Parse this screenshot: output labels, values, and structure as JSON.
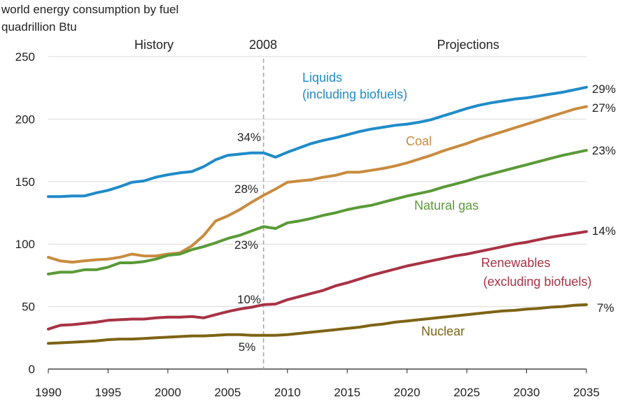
{
  "title_line1": "world energy consumption by fuel",
  "title_line2": "quadrillion Btu",
  "regions": {
    "history": "History",
    "split_year": "2008",
    "projections": "Projections"
  },
  "chart_data": {
    "type": "line",
    "title": "world energy consumption by fuel",
    "ylabel": "quadrillion Btu",
    "xlim": [
      1990,
      2035
    ],
    "ylim": [
      0,
      250
    ],
    "x_ticks": [
      1990,
      1995,
      2000,
      2005,
      2010,
      2015,
      2020,
      2025,
      2030,
      2035
    ],
    "y_ticks": [
      0,
      50,
      100,
      150,
      200,
      250
    ],
    "grid": "horizontal",
    "split_line_x": 2008,
    "series": [
      {
        "key": "liquids",
        "name_line1": "Liquids",
        "name_line2": "(including biofuels)",
        "color": "#1f8bc9",
        "end_share": "29%",
        "share_2008": "34%",
        "points": [
          [
            1990,
            138
          ],
          [
            1991,
            138
          ],
          [
            1992,
            138.5
          ],
          [
            1993,
            138.5
          ],
          [
            1994,
            141
          ],
          [
            1995,
            143
          ],
          [
            1996,
            146
          ],
          [
            1997,
            149.5
          ],
          [
            1998,
            150.5
          ],
          [
            1999,
            153.5
          ],
          [
            2000,
            155.5
          ],
          [
            2001,
            157
          ],
          [
            2002,
            158
          ],
          [
            2003,
            162
          ],
          [
            2004,
            167.5
          ],
          [
            2005,
            171
          ],
          [
            2006,
            172
          ],
          [
            2007,
            173
          ],
          [
            2008,
            173
          ],
          [
            2009,
            169.5
          ],
          [
            2010,
            173.5
          ],
          [
            2011,
            177
          ],
          [
            2012,
            180.5
          ],
          [
            2013,
            183
          ],
          [
            2014,
            185
          ],
          [
            2015,
            187.5
          ],
          [
            2016,
            190
          ],
          [
            2017,
            192
          ],
          [
            2018,
            193.5
          ],
          [
            2019,
            195
          ],
          [
            2020,
            196
          ],
          [
            2021,
            197.5
          ],
          [
            2022,
            199.5
          ],
          [
            2023,
            202.5
          ],
          [
            2024,
            205.5
          ],
          [
            2025,
            208.5
          ],
          [
            2026,
            211
          ],
          [
            2027,
            213
          ],
          [
            2028,
            214.5
          ],
          [
            2029,
            216
          ],
          [
            2030,
            217
          ],
          [
            2031,
            218.5
          ],
          [
            2032,
            220
          ],
          [
            2033,
            221.5
          ],
          [
            2034,
            223.5
          ],
          [
            2035,
            225.5
          ]
        ]
      },
      {
        "key": "coal",
        "name_line1": "Coal",
        "name_line2": "",
        "color": "#c98b3e",
        "end_share": "27%",
        "share_2008": "28%",
        "points": [
          [
            1990,
            89.5
          ],
          [
            1991,
            86.5
          ],
          [
            1992,
            85.5
          ],
          [
            1993,
            86.5
          ],
          [
            1994,
            87.5
          ],
          [
            1995,
            88
          ],
          [
            1996,
            89.5
          ],
          [
            1997,
            92
          ],
          [
            1998,
            90.5
          ],
          [
            1999,
            90.5
          ],
          [
            2000,
            92
          ],
          [
            2001,
            93
          ],
          [
            2002,
            98.5
          ],
          [
            2003,
            107
          ],
          [
            2004,
            118.5
          ],
          [
            2005,
            122.5
          ],
          [
            2006,
            127.5
          ],
          [
            2007,
            133.5
          ],
          [
            2008,
            139
          ],
          [
            2009,
            144
          ],
          [
            2010,
            149.5
          ],
          [
            2011,
            150.5
          ],
          [
            2012,
            151.5
          ],
          [
            2013,
            153.5
          ],
          [
            2014,
            155
          ],
          [
            2015,
            157.5
          ],
          [
            2016,
            157.5
          ],
          [
            2017,
            159
          ],
          [
            2018,
            160.5
          ],
          [
            2019,
            162.5
          ],
          [
            2020,
            165
          ],
          [
            2021,
            168
          ],
          [
            2022,
            171
          ],
          [
            2023,
            174.5
          ],
          [
            2024,
            177.5
          ],
          [
            2025,
            180.5
          ],
          [
            2026,
            184
          ],
          [
            2027,
            187
          ],
          [
            2028,
            190
          ],
          [
            2029,
            193
          ],
          [
            2030,
            196
          ],
          [
            2031,
            199
          ],
          [
            2032,
            202
          ],
          [
            2033,
            205
          ],
          [
            2034,
            208
          ],
          [
            2035,
            210
          ]
        ]
      },
      {
        "key": "natural_gas",
        "name_line1": "Natural gas",
        "name_line2": "",
        "color": "#5a9a37",
        "end_share": "23%",
        "share_2008": "23%",
        "points": [
          [
            1990,
            76
          ],
          [
            1991,
            77.5
          ],
          [
            1992,
            77.5
          ],
          [
            1993,
            79.5
          ],
          [
            1994,
            79.5
          ],
          [
            1995,
            81.5
          ],
          [
            1996,
            85
          ],
          [
            1997,
            85
          ],
          [
            1998,
            86
          ],
          [
            1999,
            88
          ],
          [
            2000,
            91
          ],
          [
            2001,
            92
          ],
          [
            2002,
            95.5
          ],
          [
            2003,
            98
          ],
          [
            2004,
            101
          ],
          [
            2005,
            104.5
          ],
          [
            2006,
            107
          ],
          [
            2007,
            110.5
          ],
          [
            2008,
            114
          ],
          [
            2009,
            112.5
          ],
          [
            2010,
            117
          ],
          [
            2011,
            118.5
          ],
          [
            2012,
            120.5
          ],
          [
            2013,
            123
          ],
          [
            2014,
            125
          ],
          [
            2015,
            127.5
          ],
          [
            2016,
            129.5
          ],
          [
            2017,
            131
          ],
          [
            2018,
            133.5
          ],
          [
            2019,
            136
          ],
          [
            2020,
            138.5
          ],
          [
            2021,
            140.5
          ],
          [
            2022,
            142.5
          ],
          [
            2023,
            145.5
          ],
          [
            2024,
            148
          ],
          [
            2025,
            150.5
          ],
          [
            2026,
            153.5
          ],
          [
            2027,
            156
          ],
          [
            2028,
            158.5
          ],
          [
            2029,
            161
          ],
          [
            2030,
            163.5
          ],
          [
            2031,
            166
          ],
          [
            2032,
            168.5
          ],
          [
            2033,
            171
          ],
          [
            2034,
            173
          ],
          [
            2035,
            175
          ]
        ]
      },
      {
        "key": "renewables",
        "name_line1": "Renewables",
        "name_line2": "(excluding biofuels)",
        "color": "#a83244",
        "end_share": "14%",
        "share_2008": "10%",
        "points": [
          [
            1990,
            32
          ],
          [
            1991,
            35
          ],
          [
            1992,
            35.5
          ],
          [
            1993,
            36.5
          ],
          [
            1994,
            37.5
          ],
          [
            1995,
            39
          ],
          [
            1996,
            39.5
          ],
          [
            1997,
            40
          ],
          [
            1998,
            40
          ],
          [
            1999,
            41
          ],
          [
            2000,
            41.5
          ],
          [
            2001,
            41.5
          ],
          [
            2002,
            42
          ],
          [
            2003,
            41
          ],
          [
            2004,
            43.5
          ],
          [
            2005,
            46
          ],
          [
            2006,
            48
          ],
          [
            2007,
            49.5
          ],
          [
            2008,
            51.5
          ],
          [
            2009,
            52
          ],
          [
            2010,
            55.5
          ],
          [
            2011,
            58
          ],
          [
            2012,
            60.5
          ],
          [
            2013,
            63
          ],
          [
            2014,
            66.5
          ],
          [
            2015,
            69
          ],
          [
            2016,
            72
          ],
          [
            2017,
            75
          ],
          [
            2018,
            77.5
          ],
          [
            2019,
            80
          ],
          [
            2020,
            82.5
          ],
          [
            2021,
            84.5
          ],
          [
            2022,
            86.5
          ],
          [
            2023,
            88.5
          ],
          [
            2024,
            90.5
          ],
          [
            2025,
            92
          ],
          [
            2026,
            94
          ],
          [
            2027,
            96
          ],
          [
            2028,
            98
          ],
          [
            2029,
            100
          ],
          [
            2030,
            101.5
          ],
          [
            2031,
            103.5
          ],
          [
            2032,
            105.5
          ],
          [
            2033,
            107
          ],
          [
            2034,
            108.5
          ],
          [
            2035,
            110
          ]
        ]
      },
      {
        "key": "nuclear",
        "name_line1": "Nuclear",
        "name_line2": "",
        "color": "#7d6414",
        "end_share": "7%",
        "share_2008": "5%",
        "points": [
          [
            1990,
            20.5
          ],
          [
            1991,
            21
          ],
          [
            1992,
            21.5
          ],
          [
            1993,
            22
          ],
          [
            1994,
            22.5
          ],
          [
            1995,
            23.5
          ],
          [
            1996,
            24
          ],
          [
            1997,
            24
          ],
          [
            1998,
            24.5
          ],
          [
            1999,
            25
          ],
          [
            2000,
            25.5
          ],
          [
            2001,
            26
          ],
          [
            2002,
            26.5
          ],
          [
            2003,
            26.5
          ],
          [
            2004,
            27
          ],
          [
            2005,
            27.5
          ],
          [
            2006,
            27.5
          ],
          [
            2007,
            27
          ],
          [
            2008,
            27
          ],
          [
            2009,
            27
          ],
          [
            2010,
            27.5
          ],
          [
            2011,
            28.5
          ],
          [
            2012,
            29.5
          ],
          [
            2013,
            30.5
          ],
          [
            2014,
            31.5
          ],
          [
            2015,
            32.5
          ],
          [
            2016,
            33.5
          ],
          [
            2017,
            35
          ],
          [
            2018,
            36
          ],
          [
            2019,
            37.5
          ],
          [
            2020,
            38.5
          ],
          [
            2021,
            39.5
          ],
          [
            2022,
            40.5
          ],
          [
            2023,
            41.5
          ],
          [
            2024,
            42.5
          ],
          [
            2025,
            43.5
          ],
          [
            2026,
            44.5
          ],
          [
            2027,
            45.5
          ],
          [
            2028,
            46.5
          ],
          [
            2029,
            47
          ],
          [
            2030,
            48
          ],
          [
            2031,
            48.5
          ],
          [
            2032,
            49.5
          ],
          [
            2033,
            50
          ],
          [
            2034,
            51
          ],
          [
            2035,
            51.5
          ]
        ]
      }
    ]
  }
}
